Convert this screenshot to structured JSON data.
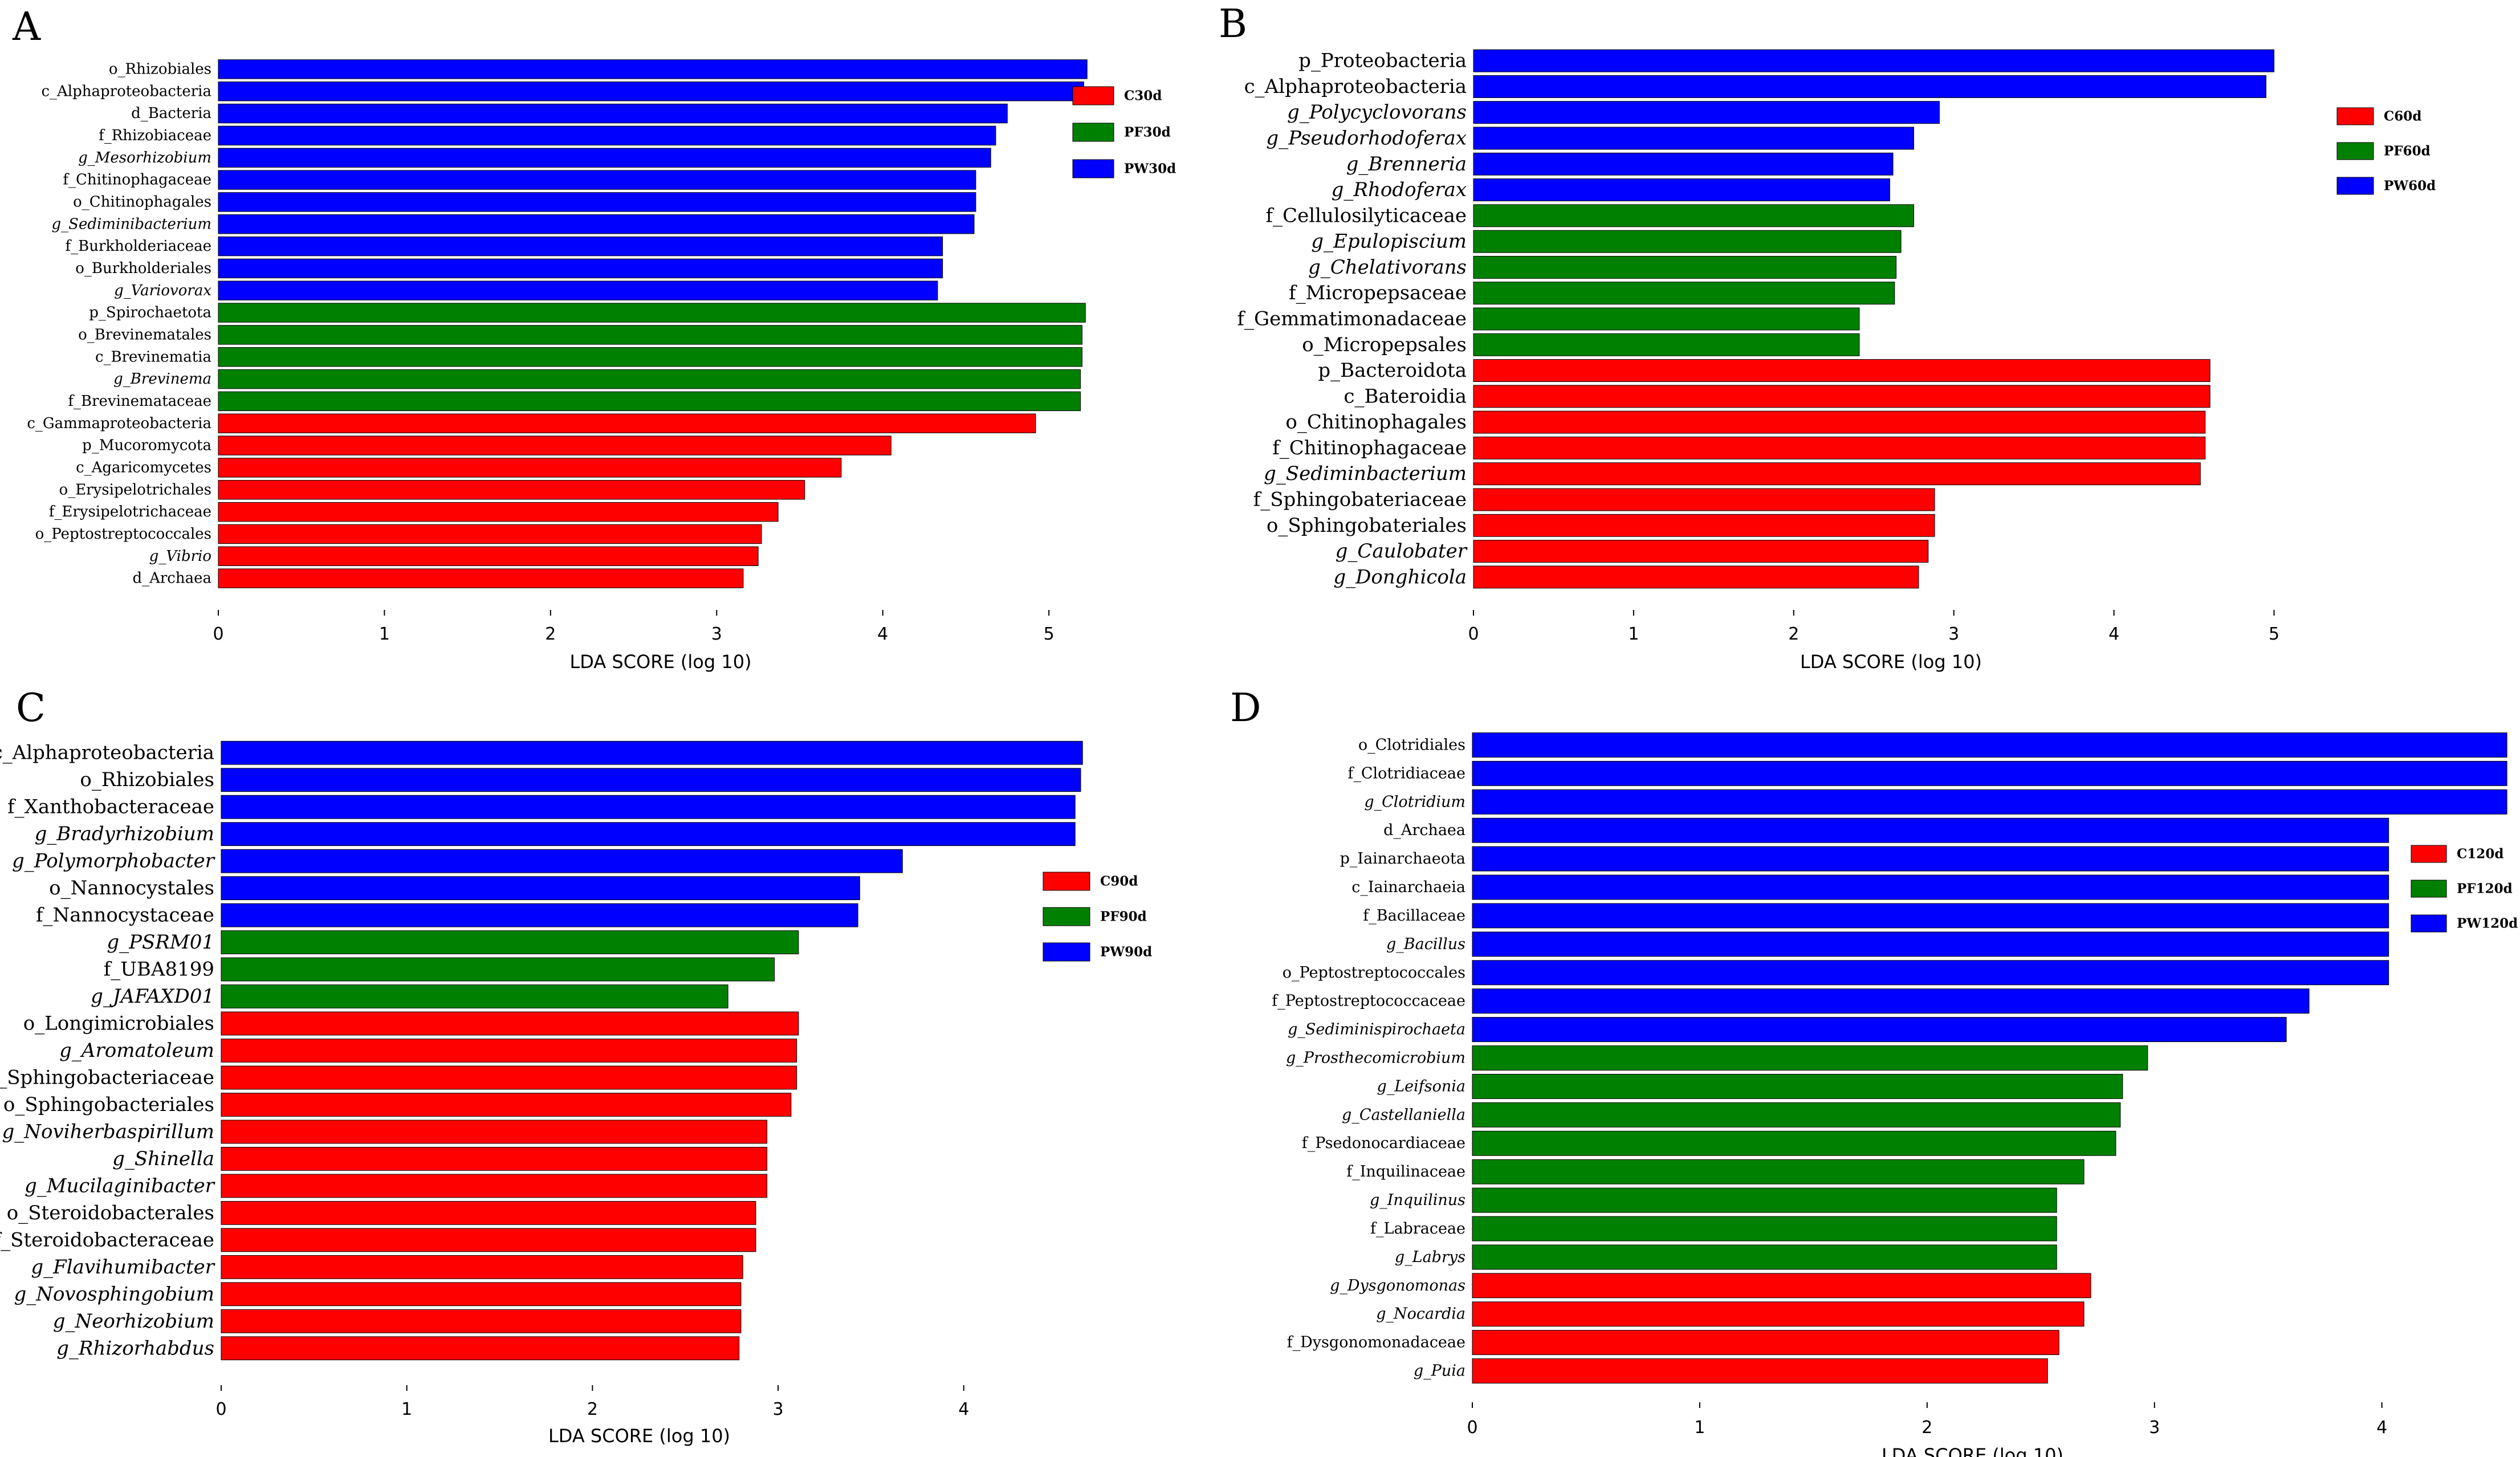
{
  "colors": {
    "C": "#ff0000",
    "PF": "#008000",
    "PW": "#0000ff"
  },
  "chart_data": [
    {
      "panel": "A",
      "type": "bar",
      "orientation": "horizontal",
      "xlabel": "LDA SCORE (log 10)",
      "xlim": [
        0,
        5.6
      ],
      "xticks": [
        0,
        1,
        2,
        3,
        4,
        5
      ],
      "legend": [
        {
          "label": "C30d",
          "group": "C"
        },
        {
          "label": "PF30d",
          "group": "PF"
        },
        {
          "label": "PW30d",
          "group": "PW"
        }
      ],
      "bars": [
        {
          "label": "o_Rhizobiales",
          "value": 5.23,
          "group": "PW",
          "italic": false
        },
        {
          "label": "c_Alphaproteobacteria",
          "value": 5.21,
          "group": "PW",
          "italic": false
        },
        {
          "label": "d_Bacteria",
          "value": 4.75,
          "group": "PW",
          "italic": false
        },
        {
          "label": "f_Rhizobiaceae",
          "value": 4.68,
          "group": "PW",
          "italic": false
        },
        {
          "label": "g_Mesorhizobium",
          "value": 4.65,
          "group": "PW",
          "italic": true
        },
        {
          "label": "f_Chitinophagaceae",
          "value": 4.56,
          "group": "PW",
          "italic": false
        },
        {
          "label": "o_Chitinophagales",
          "value": 4.56,
          "group": "PW",
          "italic": false
        },
        {
          "label": "g_Sediminibacterium",
          "value": 4.55,
          "group": "PW",
          "italic": true
        },
        {
          "label": "f_Burkholderiaceae",
          "value": 4.36,
          "group": "PW",
          "italic": false
        },
        {
          "label": "o_Burkholderiales",
          "value": 4.36,
          "group": "PW",
          "italic": false
        },
        {
          "label": "g_Variovorax",
          "value": 4.33,
          "group": "PW",
          "italic": true
        },
        {
          "label": "p_Spirochaetota",
          "value": 5.22,
          "group": "PF",
          "italic": false
        },
        {
          "label": "o_Brevinematales",
          "value": 5.2,
          "group": "PF",
          "italic": false
        },
        {
          "label": "c_Brevinematia",
          "value": 5.2,
          "group": "PF",
          "italic": false
        },
        {
          "label": "g_Brevinema",
          "value": 5.19,
          "group": "PF",
          "italic": true
        },
        {
          "label": "f_Brevinemataceae",
          "value": 5.19,
          "group": "PF",
          "italic": false
        },
        {
          "label": "c_Gammaproteobacteria",
          "value": 4.92,
          "group": "C",
          "italic": false
        },
        {
          "label": "p_Mucoromycota",
          "value": 4.05,
          "group": "C",
          "italic": false
        },
        {
          "label": "c_Agaricomycetes",
          "value": 3.75,
          "group": "C",
          "italic": false
        },
        {
          "label": "o_Erysipelotrichales",
          "value": 3.53,
          "group": "C",
          "italic": false
        },
        {
          "label": "f_Erysipelotrichaceae",
          "value": 3.37,
          "group": "C",
          "italic": false
        },
        {
          "label": "o_Peptostreptococcales",
          "value": 3.27,
          "group": "C",
          "italic": false
        },
        {
          "label": "g_Vibrio",
          "value": 3.25,
          "group": "C",
          "italic": true
        },
        {
          "label": "d_Archaea",
          "value": 3.16,
          "group": "C",
          "italic": false
        }
      ]
    },
    {
      "panel": "B",
      "type": "bar",
      "orientation": "horizontal",
      "xlabel": "LDA SCORE (log 10)",
      "xlim": [
        0,
        5.5
      ],
      "xticks": [
        0,
        1,
        2,
        3,
        4,
        5
      ],
      "legend": [
        {
          "label": "C60d",
          "group": "C"
        },
        {
          "label": "PF60d",
          "group": "PF"
        },
        {
          "label": "PW60d",
          "group": "PW"
        }
      ],
      "bars": [
        {
          "label": "p_Proteobacteria",
          "value": 5.0,
          "group": "PW",
          "italic": false
        },
        {
          "label": "c_Alphaproteobacteria",
          "value": 4.95,
          "group": "PW",
          "italic": false
        },
        {
          "label": "g_Polycyclovorans",
          "value": 2.91,
          "group": "PW",
          "italic": true
        },
        {
          "label": "g_Pseudorhodoferax",
          "value": 2.75,
          "group": "PW",
          "italic": true
        },
        {
          "label": "g_Brenneria",
          "value": 2.62,
          "group": "PW",
          "italic": true
        },
        {
          "label": "g_Rhodoferax",
          "value": 2.6,
          "group": "PW",
          "italic": true
        },
        {
          "label": "f_Cellulosilyticaceae",
          "value": 2.75,
          "group": "PF",
          "italic": false
        },
        {
          "label": "g_Epulopiscium",
          "value": 2.67,
          "group": "PF",
          "italic": true
        },
        {
          "label": "g_Chelativorans",
          "value": 2.64,
          "group": "PF",
          "italic": true
        },
        {
          "label": "f_Micropepsaceae",
          "value": 2.63,
          "group": "PF",
          "italic": false
        },
        {
          "label": "f_Gemmatimonadaceae",
          "value": 2.41,
          "group": "PF",
          "italic": false
        },
        {
          "label": "o_Micropepsales",
          "value": 2.41,
          "group": "PF",
          "italic": false
        },
        {
          "label": "p_Bacteroidota",
          "value": 4.6,
          "group": "C",
          "italic": false
        },
        {
          "label": "c_Bateroidia",
          "value": 4.6,
          "group": "C",
          "italic": false
        },
        {
          "label": "o_Chitinophagales",
          "value": 4.57,
          "group": "C",
          "italic": false
        },
        {
          "label": "f_Chitinophagaceae",
          "value": 4.57,
          "group": "C",
          "italic": false
        },
        {
          "label": "g_Sediminbacterium",
          "value": 4.54,
          "group": "C",
          "italic": true
        },
        {
          "label": "f_Sphingobateriaceae",
          "value": 2.88,
          "group": "C",
          "italic": false
        },
        {
          "label": "o_Sphingobateriales",
          "value": 2.88,
          "group": "C",
          "italic": false
        },
        {
          "label": "g_Caulobater",
          "value": 2.84,
          "group": "C",
          "italic": true
        },
        {
          "label": "g_Donghicola",
          "value": 2.78,
          "group": "C",
          "italic": true
        }
      ]
    },
    {
      "panel": "C",
      "type": "bar",
      "orientation": "horizontal",
      "xlabel": "LDA SCORE (log 10)",
      "xlim": [
        0,
        4.75
      ],
      "xticks": [
        0,
        1,
        2,
        3,
        4
      ],
      "legend": [
        {
          "label": "C90d",
          "group": "C"
        },
        {
          "label": "PF90d",
          "group": "PF"
        },
        {
          "label": "PW90d",
          "group": "PW"
        }
      ],
      "bars": [
        {
          "label": "c_Alphaproteobacteria",
          "value": 4.64,
          "group": "PW",
          "italic": false
        },
        {
          "label": "o_Rhizobiales",
          "value": 4.63,
          "group": "PW",
          "italic": false
        },
        {
          "label": "f_Xanthobacteraceae",
          "value": 4.6,
          "group": "PW",
          "italic": false
        },
        {
          "label": "g_Bradyrhizobium",
          "value": 4.6,
          "group": "PW",
          "italic": true
        },
        {
          "label": "g_Polymorphobacter",
          "value": 3.67,
          "group": "PW",
          "italic": true
        },
        {
          "label": "o_Nannocystales",
          "value": 3.44,
          "group": "PW",
          "italic": false
        },
        {
          "label": "f_Nannocystaceae",
          "value": 3.43,
          "group": "PW",
          "italic": false
        },
        {
          "label": "g_PSRM01",
          "value": 3.11,
          "group": "PF",
          "italic": true
        },
        {
          "label": "f_UBA8199",
          "value": 2.98,
          "group": "PF",
          "italic": false
        },
        {
          "label": "g_JAFAXD01",
          "value": 2.73,
          "group": "PF",
          "italic": true
        },
        {
          "label": "o_Longimicrobiales",
          "value": 3.11,
          "group": "C",
          "italic": false
        },
        {
          "label": "g_Aromatoleum",
          "value": 3.1,
          "group": "C",
          "italic": true
        },
        {
          "label": "f_Sphingobacteriaceae",
          "value": 3.1,
          "group": "C",
          "italic": false
        },
        {
          "label": "o_Sphingobacteriales",
          "value": 3.07,
          "group": "C",
          "italic": false
        },
        {
          "label": "g_Noviherbaspirillum",
          "value": 2.94,
          "group": "C",
          "italic": true
        },
        {
          "label": "g_Shinella",
          "value": 2.94,
          "group": "C",
          "italic": true
        },
        {
          "label": "g_Mucilaginibacter",
          "value": 2.94,
          "group": "C",
          "italic": true
        },
        {
          "label": "o_Steroidobacterales",
          "value": 2.88,
          "group": "C",
          "italic": false
        },
        {
          "label": "f_Steroidobacteraceae",
          "value": 2.88,
          "group": "C",
          "italic": false
        },
        {
          "label": "g_Flavihumibacter",
          "value": 2.81,
          "group": "C",
          "italic": true
        },
        {
          "label": "g_Novosphingobium",
          "value": 2.8,
          "group": "C",
          "italic": true
        },
        {
          "label": "g_Neorhizobium",
          "value": 2.8,
          "group": "C",
          "italic": true
        },
        {
          "label": "g_Rhizorhabdus",
          "value": 2.79,
          "group": "C",
          "italic": true
        }
      ]
    },
    {
      "panel": "D",
      "type": "bar",
      "orientation": "horizontal",
      "xlabel": "LDA SCORE (log 10)",
      "xlim": [
        0,
        4.6
      ],
      "xticks": [
        0,
        1,
        2,
        3,
        4
      ],
      "legend": [
        {
          "label": "C120d",
          "group": "C"
        },
        {
          "label": "PF120d",
          "group": "PF"
        },
        {
          "label": "PW120d",
          "group": "PW"
        }
      ],
      "bars": [
        {
          "label": "o_Clotridiales",
          "value": 4.55,
          "group": "PW",
          "italic": false
        },
        {
          "label": "f_Clotridiaceae",
          "value": 4.55,
          "group": "PW",
          "italic": false
        },
        {
          "label": "g_Clotridium",
          "value": 4.55,
          "group": "PW",
          "italic": true
        },
        {
          "label": "d_Archaea",
          "value": 4.03,
          "group": "PW",
          "italic": false
        },
        {
          "label": "p_Iainarchaeota",
          "value": 4.03,
          "group": "PW",
          "italic": false
        },
        {
          "label": "c_Iainarchaeia",
          "value": 4.03,
          "group": "PW",
          "italic": false
        },
        {
          "label": "f_Bacillaceae",
          "value": 4.03,
          "group": "PW",
          "italic": false
        },
        {
          "label": "g_Bacillus",
          "value": 4.03,
          "group": "PW",
          "italic": true
        },
        {
          "label": "o_Peptostreptococcales",
          "value": 4.03,
          "group": "PW",
          "italic": false
        },
        {
          "label": "f_Peptostreptococcaceae",
          "value": 3.68,
          "group": "PW",
          "italic": false
        },
        {
          "label": "g_Sediminispirochaeta",
          "value": 3.58,
          "group": "PW",
          "italic": true
        },
        {
          "label": "g_Prosthecomicrobium",
          "value": 2.97,
          "group": "PF",
          "italic": true
        },
        {
          "label": "g_Leifsonia",
          "value": 2.86,
          "group": "PF",
          "italic": true
        },
        {
          "label": "g_Castellaniella",
          "value": 2.85,
          "group": "PF",
          "italic": true
        },
        {
          "label": "f_Psedonocardiaceae",
          "value": 2.83,
          "group": "PF",
          "italic": false
        },
        {
          "label": "f_Inquilinaceae",
          "value": 2.69,
          "group": "PF",
          "italic": false
        },
        {
          "label": "g_Inquilinus",
          "value": 2.57,
          "group": "PF",
          "italic": true
        },
        {
          "label": "f_Labraceae",
          "value": 2.57,
          "group": "PF",
          "italic": false
        },
        {
          "label": "g_Labrys",
          "value": 2.57,
          "group": "PF",
          "italic": true
        },
        {
          "label": "g_Dysgonomonas",
          "value": 2.72,
          "group": "C",
          "italic": true
        },
        {
          "label": "g_Nocardia",
          "value": 2.69,
          "group": "C",
          "italic": true
        },
        {
          "label": "f_Dysgonomonadaceae",
          "value": 2.58,
          "group": "C",
          "italic": false
        },
        {
          "label": "g_Puia",
          "value": 2.53,
          "group": "C",
          "italic": true
        }
      ]
    }
  ]
}
